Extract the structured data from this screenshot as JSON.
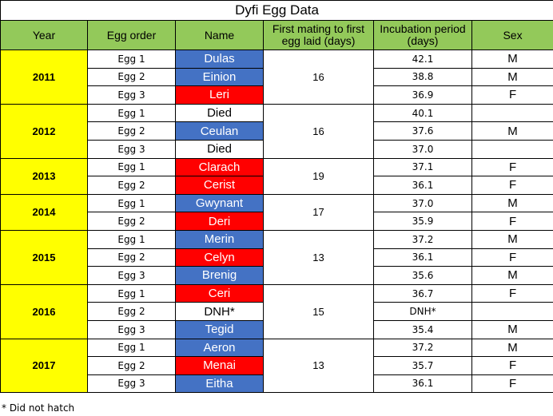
{
  "title": "Dyfi Egg Data",
  "headers": {
    "year": "Year",
    "egg_order": "Egg order",
    "name": "Name",
    "mating": "First mating to first egg laid (days)",
    "incubation": "Incubation period (days)",
    "sex": "Sex"
  },
  "colors": {
    "header": "#93C95A",
    "year": "#FFFF00",
    "male_name": "#4472C4",
    "female_name": "#FF0000"
  },
  "years": [
    {
      "year": "2011",
      "mating": "16",
      "eggs": [
        {
          "egg": "Egg 1",
          "name": "Dulas",
          "color": "blue",
          "incubation": "42.1",
          "sex": "M"
        },
        {
          "egg": "Egg 2",
          "name": "Einion",
          "color": "blue",
          "incubation": "38.8",
          "sex": "M"
        },
        {
          "egg": "Egg 3",
          "name": "Leri",
          "color": "red",
          "incubation": "36.9",
          "sex": "F"
        }
      ]
    },
    {
      "year": "2012",
      "mating": "16",
      "eggs": [
        {
          "egg": "Egg 1",
          "name": "Died",
          "color": "white",
          "incubation": "40.1",
          "sex": ""
        },
        {
          "egg": "Egg 2",
          "name": "Ceulan",
          "color": "blue",
          "incubation": "37.6",
          "sex": "M"
        },
        {
          "egg": "Egg 3",
          "name": "Died",
          "color": "white",
          "incubation": "37.0",
          "sex": ""
        }
      ]
    },
    {
      "year": "2013",
      "mating": "19",
      "eggs": [
        {
          "egg": "Egg 1",
          "name": "Clarach",
          "color": "red",
          "incubation": "37.1",
          "sex": "F"
        },
        {
          "egg": "Egg 2",
          "name": "Cerist",
          "color": "red",
          "incubation": "36.1",
          "sex": "F"
        }
      ]
    },
    {
      "year": "2014",
      "mating": "17",
      "eggs": [
        {
          "egg": "Egg 1",
          "name": "Gwynant",
          "color": "blue",
          "incubation": "37.0",
          "sex": "M"
        },
        {
          "egg": "Egg 2",
          "name": "Deri",
          "color": "red",
          "incubation": "35.9",
          "sex": "F"
        }
      ]
    },
    {
      "year": "2015",
      "mating": "13",
      "eggs": [
        {
          "egg": "Egg 1",
          "name": "Merin",
          "color": "blue",
          "incubation": "37.2",
          "sex": "M"
        },
        {
          "egg": "Egg 2",
          "name": "Celyn",
          "color": "red",
          "incubation": "36.1",
          "sex": "F"
        },
        {
          "egg": "Egg 3",
          "name": "Brenig",
          "color": "blue",
          "incubation": "35.6",
          "sex": "M"
        }
      ]
    },
    {
      "year": "2016",
      "mating": "15",
      "eggs": [
        {
          "egg": "Egg 1",
          "name": "Ceri",
          "color": "red",
          "incubation": "36.7",
          "sex": "F"
        },
        {
          "egg": "Egg 2",
          "name": "DNH*",
          "color": "white",
          "incubation": "DNH*",
          "sex": ""
        },
        {
          "egg": "Egg 3",
          "name": "Tegid",
          "color": "blue",
          "incubation": "35.4",
          "sex": "M"
        }
      ]
    },
    {
      "year": "2017",
      "mating": "13",
      "eggs": [
        {
          "egg": "Egg 1",
          "name": "Aeron",
          "color": "blue",
          "incubation": "37.2",
          "sex": "M"
        },
        {
          "egg": "Egg 2",
          "name": "Menai",
          "color": "red",
          "incubation": "35.7",
          "sex": "F"
        },
        {
          "egg": "Egg 3",
          "name": "Eitha",
          "color": "blue",
          "incubation": "36.1",
          "sex": "F"
        }
      ]
    }
  ],
  "footnote": "* Did not hatch"
}
